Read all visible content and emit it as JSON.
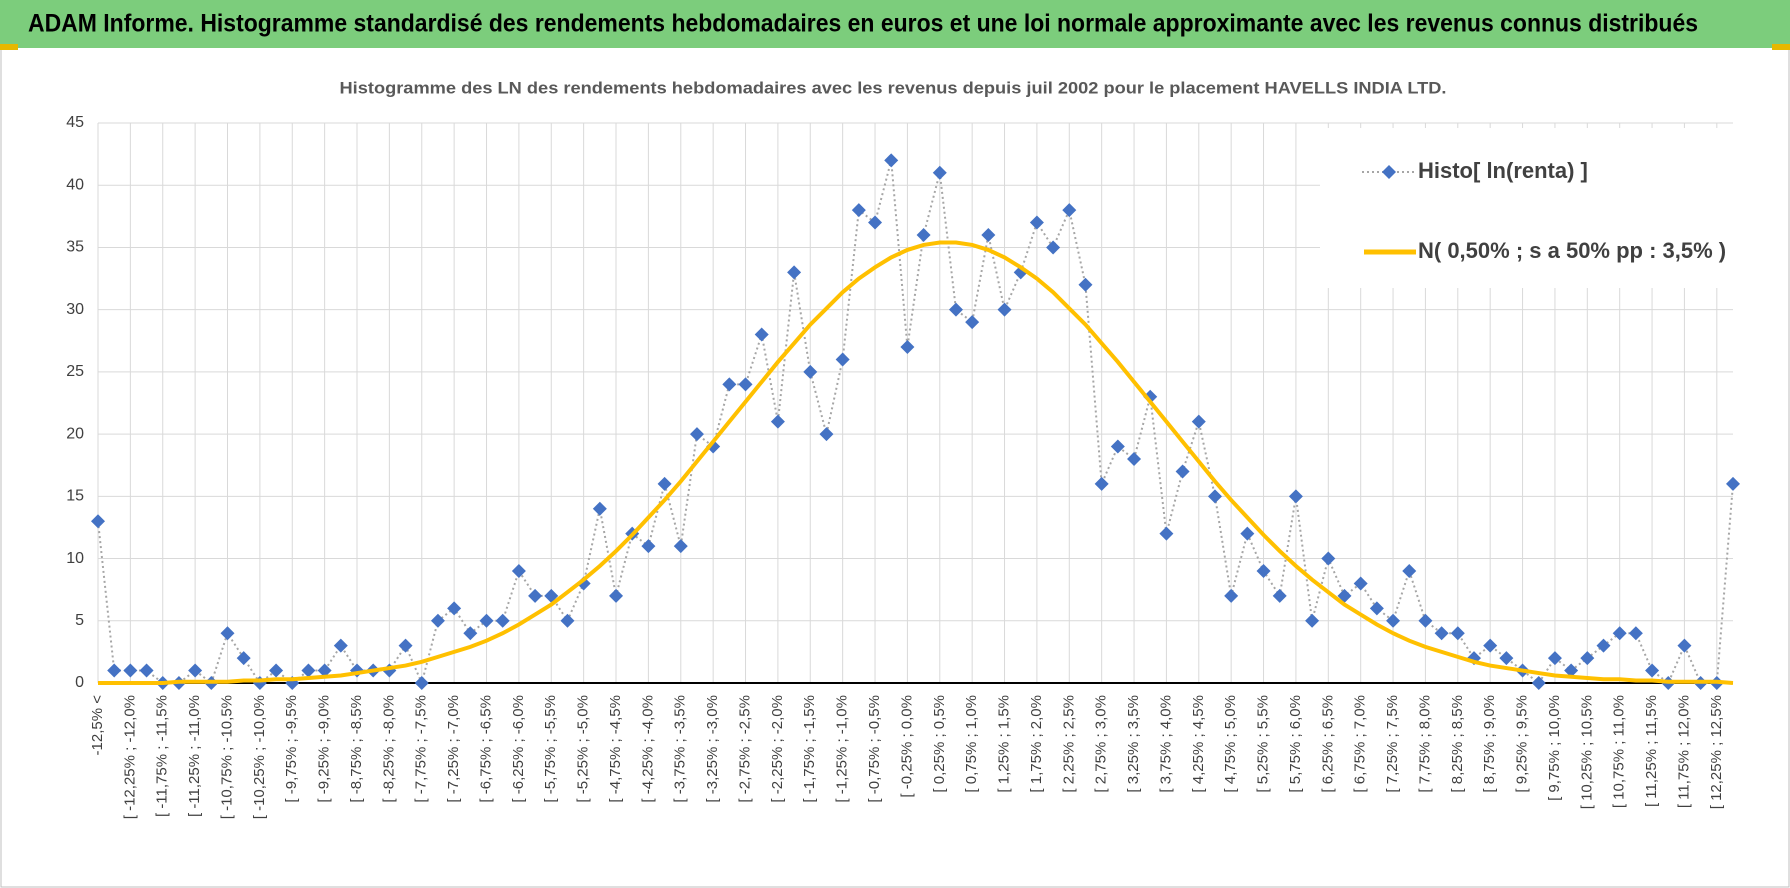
{
  "header": {
    "title": "ADAM Informe. Histogramme standardisé des rendements hebdomadaires en euros et une loi normale approximante avec les revenus connus distribués"
  },
  "chart_data": {
    "type": "line",
    "title": "Histogramme  des LN des rendements hebdomadaires avec les revenus depuis juil 2002 pour le placement HAVELLS INDIA LTD.",
    "categories": [
      "-12,5% <",
      null,
      "[ -12,25% ; -12,0%",
      null,
      "[ -11,75% ; -11,5%",
      null,
      "[ -11,25% ; -11,0%",
      null,
      "[ -10,75% ; -10,5%",
      null,
      "[ -10,25% ; -10,0%",
      null,
      "[ -9,75% ; -9,5%",
      null,
      "[ -9,25% ; -9,0%",
      null,
      "[ -8,75% ; -8,5%",
      null,
      "[ -8,25% ; -8,0%",
      null,
      "[ -7,75% ; -7,5%",
      null,
      "[ -7,25% ; -7,0%",
      null,
      "[ -6,75% ; -6,5%",
      null,
      "[ -6,25% ; -6,0%",
      null,
      "[ -5,75% ; -5,5%",
      null,
      "[ -5,25% ; -5,0%",
      null,
      "[ -4,75% ; -4,5%",
      null,
      "[ -4,25% ; -4,0%",
      null,
      "[ -3,75% ; -3,5%",
      null,
      "[ -3,25% ; -3,0%",
      null,
      "[ -2,75% ; -2,5%",
      null,
      "[ -2,25% ; -2,0%",
      null,
      "[ -1,75% ; -1,5%",
      null,
      "[ -1,25% ; -1,0%",
      null,
      "[ -0,75% ; -0,5%",
      null,
      "[ -0,25% ; 0,0%",
      null,
      "[ 0,25% ; 0,5%",
      null,
      "[ 0,75% ; 1,0%",
      null,
      "[ 1,25% ; 1,5%",
      null,
      "[ 1,75% ; 2,0%",
      null,
      "[ 2,25% ; 2,5%",
      null,
      "[ 2,75% ; 3,0%",
      null,
      "[ 3,25% ; 3,5%",
      null,
      "[ 3,75% ; 4,0%",
      null,
      "[ 4,25% ; 4,5%",
      null,
      "[ 4,75% ; 5,0%",
      null,
      "[ 5,25% ; 5,5%",
      null,
      "[ 5,75% ; 6,0%",
      null,
      "[ 6,25% ; 6,5%",
      null,
      "[ 6,75% ; 7,0%",
      null,
      "[ 7,25% ; 7,5%",
      null,
      "[ 7,75% ; 8,0%",
      null,
      "[ 8,25% ; 8,5%",
      null,
      "[ 8,75% ; 9,0%",
      null,
      "[ 9,25% ; 9,5%",
      null,
      "[ 9,75% ; 10,0%",
      null,
      "[ 10,25% ; 10,5%",
      null,
      "[ 10,75% ; 11,0%",
      null,
      "[ 11,25% ; 11,5%",
      null,
      "[ 11,75% ; 12,0%",
      null,
      "[ 12,25% ; 12,5%",
      null
    ],
    "series": [
      {
        "name": "Histo[ ln(renta) ]",
        "color": "#4472c4",
        "line_color": "#a6a6a6",
        "values": [
          13,
          1,
          1,
          1,
          0,
          0,
          1,
          0,
          4,
          2,
          0,
          1,
          0,
          1,
          1,
          3,
          1,
          1,
          1,
          3,
          0,
          5,
          6,
          4,
          5,
          5,
          9,
          7,
          7,
          5,
          8,
          14,
          7,
          12,
          11,
          16,
          11,
          20,
          19,
          24,
          24,
          28,
          21,
          33,
          25,
          20,
          26,
          38,
          37,
          42,
          27,
          36,
          41,
          30,
          29,
          36,
          30,
          33,
          37,
          35,
          38,
          32,
          16,
          19,
          18,
          23,
          12,
          17,
          21,
          15,
          7,
          12,
          9,
          7,
          15,
          5,
          10,
          7,
          8,
          6,
          5,
          9,
          5,
          4,
          4,
          2,
          3,
          2,
          1,
          0,
          2,
          1,
          2,
          3,
          4,
          4,
          1,
          0,
          3,
          0,
          0,
          16
        ]
      },
      {
        "name": "N( 0,50% ; s a 50% pp : 3,5% )",
        "color": "#ffc000",
        "values": [
          0,
          0,
          0,
          0,
          0,
          0.1,
          0.1,
          0.1,
          0.1,
          0.2,
          0.2,
          0.3,
          0.3,
          0.4,
          0.5,
          0.6,
          0.8,
          1.0,
          1.2,
          1.4,
          1.7,
          2.1,
          2.5,
          2.9,
          3.4,
          4.0,
          4.7,
          5.5,
          6.3,
          7.3,
          8.3,
          9.4,
          10.6,
          11.9,
          13.3,
          14.7,
          16.2,
          17.8,
          19.4,
          21.0,
          22.6,
          24.2,
          25.8,
          27.3,
          28.8,
          30.1,
          31.4,
          32.5,
          33.4,
          34.2,
          34.8,
          35.2,
          35.4,
          35.4,
          35.2,
          34.8,
          34.2,
          33.4,
          32.5,
          31.4,
          30.1,
          28.8,
          27.3,
          25.8,
          24.2,
          22.6,
          21.0,
          19.4,
          17.8,
          16.2,
          14.7,
          13.3,
          11.9,
          10.6,
          9.4,
          8.3,
          7.3,
          6.3,
          5.5,
          4.7,
          4.0,
          3.4,
          2.9,
          2.5,
          2.1,
          1.7,
          1.4,
          1.2,
          1.0,
          0.8,
          0.6,
          0.5,
          0.4,
          0.3,
          0.3,
          0.2,
          0.2,
          0.1,
          0.1,
          0.1,
          0.1,
          0
        ]
      }
    ],
    "ylim": [
      0,
      45
    ],
    "yticks": [
      0,
      5,
      10,
      15,
      20,
      25,
      30,
      35,
      40,
      45
    ],
    "grid": true,
    "legend": "top-right"
  }
}
